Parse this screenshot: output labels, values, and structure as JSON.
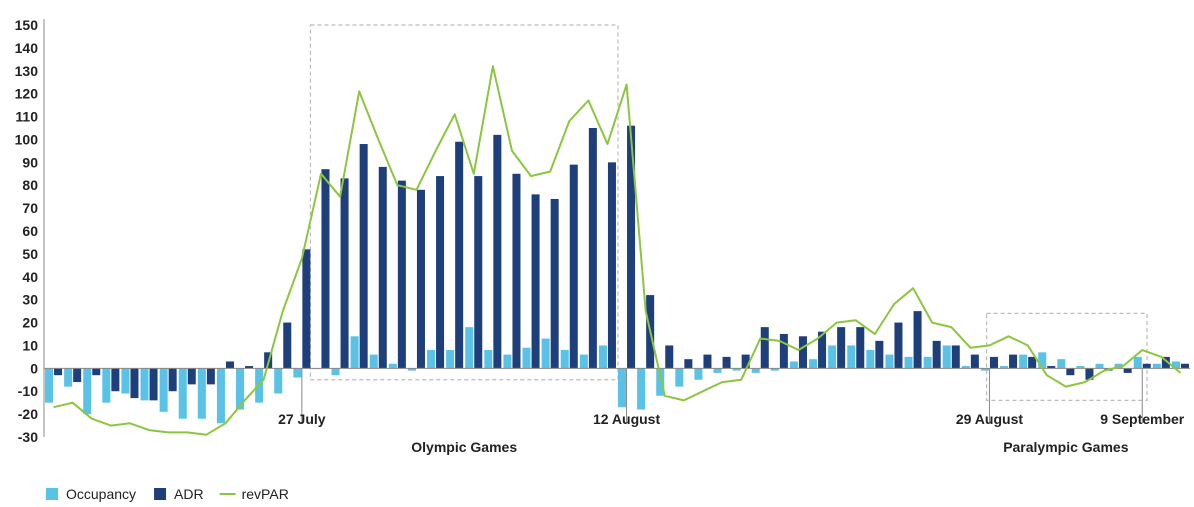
{
  "colors": {
    "occupancy": "#5bc2e7",
    "adr": "#1f3f7a",
    "revpar": "#8cc63f",
    "axis": "#888888",
    "dashed": "#bbbbbb"
  },
  "chart_data": {
    "type": "bar",
    "title": "",
    "xlabel": "",
    "ylabel": "",
    "ylim": [
      -30,
      150
    ],
    "yticks": [
      150,
      140,
      130,
      120,
      110,
      100,
      90,
      80,
      70,
      60,
      50,
      40,
      30,
      20,
      10,
      0,
      -10,
      -20,
      -30
    ],
    "grid": false,
    "legend_position": "bottom-left",
    "x_count": 60,
    "series": [
      {
        "name": "Occupancy",
        "type": "bar",
        "values": [
          -15,
          -8,
          -20,
          -15,
          -11,
          -14,
          -19,
          -22,
          -22,
          -24,
          -18,
          -15,
          -11,
          -4,
          0,
          -3,
          14,
          6,
          2,
          -1,
          8,
          8,
          18,
          8,
          6,
          9,
          13,
          8,
          6,
          10,
          -17,
          -18,
          -12,
          -8,
          -5,
          -2,
          -1,
          -2,
          -1,
          3,
          4,
          10,
          10,
          8,
          6,
          5,
          5,
          10,
          1,
          -1,
          1,
          6,
          7,
          4,
          1,
          2,
          2,
          5,
          2,
          3
        ]
      },
      {
        "name": "ADR",
        "type": "bar",
        "values": [
          -3,
          -6,
          -3,
          -10,
          -13,
          -14,
          -10,
          -7,
          -7,
          3,
          1,
          7,
          20,
          52,
          87,
          83,
          98,
          88,
          82,
          78,
          84,
          99,
          84,
          102,
          85,
          76,
          74,
          89,
          105,
          90,
          106,
          32,
          10,
          4,
          6,
          5,
          6,
          18,
          15,
          14,
          16,
          18,
          18,
          12,
          20,
          25,
          12,
          10,
          6,
          5,
          6,
          5,
          1,
          -3,
          -5,
          -1,
          -2,
          2,
          5,
          2
        ]
      },
      {
        "name": "revPAR",
        "type": "line",
        "values": [
          -17,
          -15,
          -22,
          -25,
          -24,
          -27,
          -28,
          -28,
          -29,
          -24,
          -14,
          -5,
          25,
          48,
          85,
          75,
          121,
          100,
          80,
          78,
          95,
          111,
          85,
          132,
          95,
          84,
          86,
          108,
          117,
          98,
          124,
          25,
          -12,
          -14,
          -10,
          -6,
          -5,
          13,
          12,
          8,
          13,
          20,
          21,
          15,
          28,
          35,
          20,
          18,
          9,
          10,
          14,
          10,
          -3,
          -8,
          -6,
          -1,
          1,
          8,
          5,
          -2
        ]
      }
    ],
    "x_labels": [
      {
        "label": "27 July",
        "index": 13
      },
      {
        "label": "12 August",
        "index": 30
      },
      {
        "label": "29 August",
        "index": 49
      },
      {
        "label": "9 September",
        "index": 57
      }
    ],
    "annotations": [
      {
        "text": "Olympic Games"
      },
      {
        "text": "Paralympic Games"
      }
    ],
    "legend": [
      {
        "label": "Occupancy",
        "color": "#5bc2e7",
        "symbol": "square"
      },
      {
        "label": "ADR",
        "color": "#1f3f7a",
        "symbol": "square"
      },
      {
        "label": "revPAR",
        "color": "#8cc63f",
        "symbol": "line"
      }
    ]
  }
}
